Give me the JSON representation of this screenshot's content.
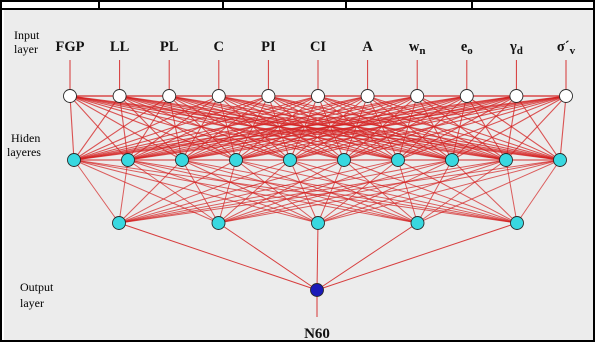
{
  "layer_labels": {
    "input": [
      "Input",
      "layer"
    ],
    "hidden": [
      "Hiden",
      "layeres"
    ],
    "output": [
      "Output",
      "layer"
    ]
  },
  "inputs": [
    {
      "base": "FGP",
      "sub": ""
    },
    {
      "base": "LL",
      "sub": ""
    },
    {
      "base": "PL",
      "sub": ""
    },
    {
      "base": "C",
      "sub": ""
    },
    {
      "base": "PI",
      "sub": ""
    },
    {
      "base": "CI",
      "sub": ""
    },
    {
      "base": "A",
      "sub": ""
    },
    {
      "base": "w",
      "sub": "n"
    },
    {
      "base": "e",
      "sub": "o"
    },
    {
      "base": "γ",
      "sub": "d"
    },
    {
      "base": "σ´",
      "sub": "v"
    }
  ],
  "output_name": "N60",
  "colors": {
    "background": "#ececec",
    "connection": "#d42020",
    "input_node": "#ffffff",
    "hidden_node": "#38d8e0",
    "output_node": "#1a1ab8",
    "node_stroke": "#2a2a2a",
    "text": "#111111"
  },
  "network": {
    "input_nodes": 11,
    "hidden1_nodes": 10,
    "hidden2_nodes": 5,
    "output_nodes": 1
  }
}
